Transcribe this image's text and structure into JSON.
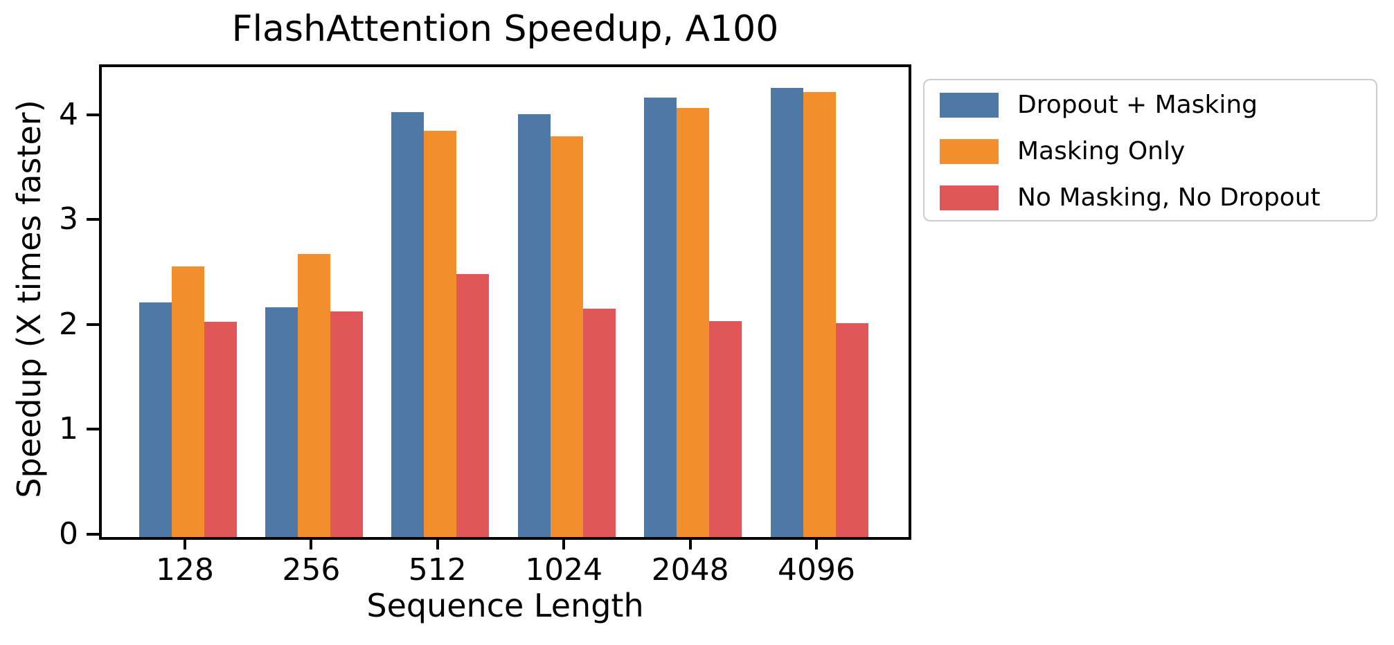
{
  "chart_data": {
    "type": "bar",
    "title": "FlashAttention Speedup, A100",
    "xlabel": "Sequence Length",
    "ylabel": "Speedup (X times faster)",
    "categories": [
      "128",
      "256",
      "512",
      "1024",
      "2048",
      "4096"
    ],
    "series": [
      {
        "name": "Dropout + Masking",
        "color": "#4e79a7",
        "values": [
          2.24,
          2.19,
          4.05,
          4.03,
          4.19,
          4.28
        ]
      },
      {
        "name": "Masking Only",
        "color": "#f28e2b",
        "values": [
          2.58,
          2.7,
          3.87,
          3.82,
          4.09,
          4.24
        ]
      },
      {
        "name": "No Masking, No Dropout",
        "color": "#e15759",
        "values": [
          2.05,
          2.15,
          2.51,
          2.18,
          2.06,
          2.04
        ]
      }
    ],
    "yticks": [
      0,
      1,
      2,
      3,
      4
    ],
    "ylim": [
      0,
      4.48
    ],
    "grid": false,
    "legend_position": "outside-upper-right"
  }
}
